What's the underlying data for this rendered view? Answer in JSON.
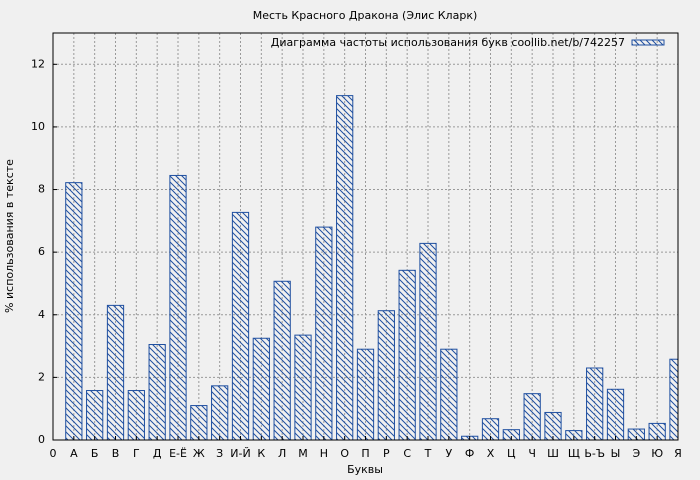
{
  "chart_data": {
    "type": "bar",
    "title": "Месть Красного Дракона (Элис Кларк)",
    "xlabel": "Буквы",
    "ylabel": "% использования в тексте",
    "x": [
      1,
      2,
      3,
      4,
      5,
      6,
      7,
      8,
      9,
      10,
      11,
      12,
      13,
      14,
      15,
      16,
      17,
      18,
      19,
      20,
      21,
      22,
      23,
      24,
      25,
      26,
      27,
      28,
      29,
      30
    ],
    "series": [
      {
        "name": "Диаграмма частоты использования букв coollib.net/b/742257",
        "color": "#1f4fa0",
        "values": [
          8.22,
          1.58,
          4.3,
          1.58,
          3.05,
          8.45,
          1.1,
          1.73,
          7.27,
          3.25,
          5.07,
          3.35,
          6.8,
          11.0,
          2.9,
          4.13,
          5.42,
          6.28,
          2.9,
          0.12,
          0.68,
          0.33,
          1.48,
          0.88,
          0.3,
          2.3,
          1.62,
          0.35,
          0.53,
          2.58
        ]
      }
    ],
    "xlim": [
      0,
      30
    ],
    "xticks": [
      0,
      {
        "value": 1,
        "label": "А"
      },
      {
        "value": 2,
        "label": "Б"
      },
      {
        "value": 3,
        "label": "В"
      },
      {
        "value": 4,
        "label": "Г"
      },
      {
        "value": 5,
        "label": "Д"
      },
      {
        "value": 6,
        "label": "Е-Ё"
      },
      {
        "value": 7,
        "label": "Ж"
      },
      {
        "value": 8,
        "label": "З"
      },
      {
        "value": 9,
        "label": "И-Й"
      },
      {
        "value": 10,
        "label": "К"
      },
      {
        "value": 11,
        "label": "Л"
      },
      {
        "value": 12,
        "label": "М"
      },
      {
        "value": 13,
        "label": "Н"
      },
      {
        "value": 14,
        "label": "О"
      },
      {
        "value": 15,
        "label": "П"
      },
      {
        "value": 16,
        "label": "Р"
      },
      {
        "value": 17,
        "label": "С"
      },
      {
        "value": 18,
        "label": "Т"
      },
      {
        "value": 19,
        "label": "У"
      },
      {
        "value": 20,
        "label": "Ф"
      },
      {
        "value": 21,
        "label": "Х"
      },
      {
        "value": 22,
        "label": "Ц"
      },
      {
        "value": 23,
        "label": "Ч"
      },
      {
        "value": 24,
        "label": "Ш"
      },
      {
        "value": 25,
        "label": "Щ"
      },
      {
        "value": 26,
        "label": "Ь-Ъ"
      },
      {
        "value": 27,
        "label": "Ы"
      },
      {
        "value": 28,
        "label": "Э"
      },
      {
        "value": 29,
        "label": "Ю"
      },
      {
        "value": 30,
        "label": "Я"
      }
    ],
    "ylim": [
      0,
      13
    ],
    "yticks": [
      0,
      2,
      4,
      6,
      8,
      10,
      12
    ],
    "grid": true,
    "legend": "upper right"
  }
}
